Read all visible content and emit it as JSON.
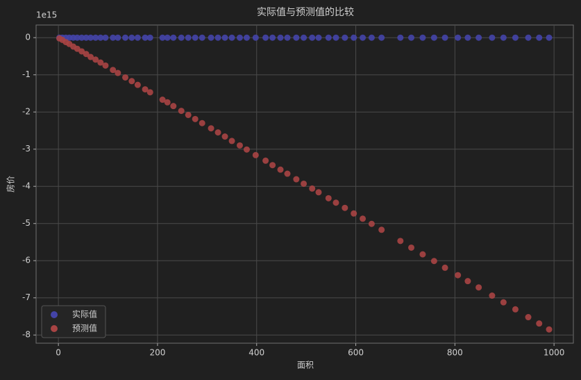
{
  "chart_data": {
    "type": "scatter",
    "title": "实际值与预测值的比较",
    "x_label": "面积",
    "y_label": "房价",
    "y_offset_label": "1e15",
    "x": [
      2,
      8,
      15,
      22,
      30,
      38,
      47,
      56,
      65,
      75,
      85,
      95,
      110,
      120,
      135,
      148,
      160,
      175,
      185,
      210,
      220,
      232,
      248,
      262,
      276,
      290,
      308,
      322,
      336,
      350,
      366,
      380,
      398,
      418,
      432,
      448,
      462,
      480,
      495,
      512,
      525,
      545,
      560,
      578,
      596,
      614,
      632,
      652,
      690,
      712,
      735,
      758,
      780,
      806,
      826,
      848,
      875,
      898,
      922,
      948,
      970,
      990
    ],
    "series": [
      {
        "name": "实际值",
        "color": "#4444a8",
        "values": [
          0,
          0,
          0,
          0,
          0,
          0,
          0,
          0,
          0,
          0,
          0,
          0,
          0,
          0,
          0,
          0,
          0,
          0,
          0,
          0,
          0,
          0,
          0,
          0,
          0,
          0,
          0,
          0,
          0,
          0,
          0,
          0,
          0,
          0,
          0,
          0,
          0,
          0,
          0,
          0,
          0,
          0,
          0,
          0,
          0,
          0,
          0,
          0,
          0,
          0,
          0,
          0,
          0,
          0,
          0,
          0,
          0,
          0,
          0,
          0,
          0,
          0
        ]
      },
      {
        "name": "预测值",
        "color": "#a84444",
        "values": [
          -0.02,
          -0.06,
          -0.12,
          -0.17,
          -0.24,
          -0.3,
          -0.37,
          -0.44,
          -0.52,
          -0.59,
          -0.67,
          -0.75,
          -0.87,
          -0.95,
          -1.07,
          -1.17,
          -1.27,
          -1.39,
          -1.47,
          -1.67,
          -1.74,
          -1.84,
          -1.97,
          -2.08,
          -2.19,
          -2.3,
          -2.44,
          -2.55,
          -2.66,
          -2.78,
          -2.9,
          -3.01,
          -3.16,
          -3.31,
          -3.43,
          -3.55,
          -3.66,
          -3.81,
          -3.93,
          -4.06,
          -4.16,
          -4.32,
          -4.44,
          -4.58,
          -4.73,
          -4.87,
          -5.01,
          -5.17,
          -5.47,
          -5.65,
          -5.83,
          -6.01,
          -6.19,
          -6.39,
          -6.55,
          -6.72,
          -6.94,
          -7.12,
          -7.31,
          -7.52,
          -7.69,
          -7.85
        ]
      }
    ],
    "xlim": [
      -45,
      1039
    ],
    "ylim": [
      -8.22,
      0.34
    ],
    "xticks": [
      0,
      200,
      400,
      600,
      800,
      1000
    ],
    "yticks": [
      -8,
      -7,
      -6,
      -5,
      -4,
      -3,
      -2,
      -1,
      0
    ],
    "grid": true,
    "legend": "lower left"
  }
}
